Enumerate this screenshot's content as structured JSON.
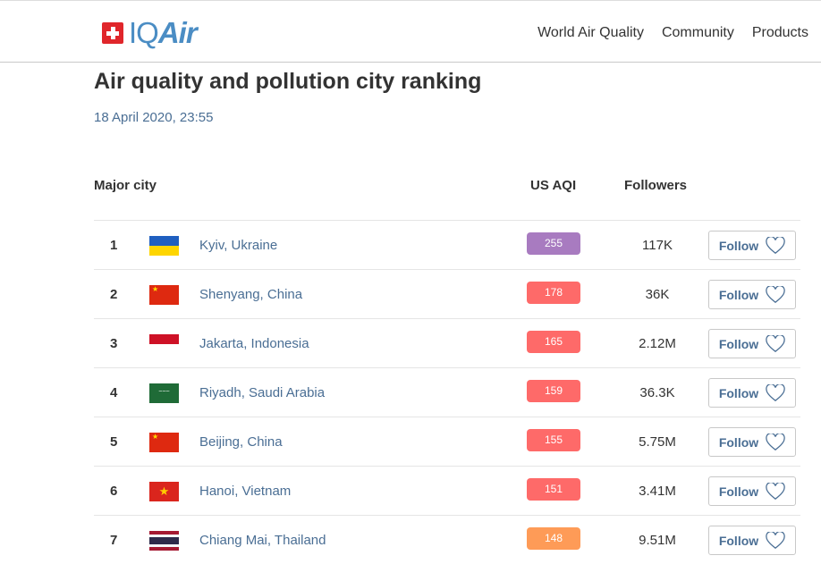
{
  "header": {
    "logo": "IQAir",
    "nav": [
      "World Air Quality",
      "Community",
      "Products"
    ]
  },
  "page": {
    "title": "Air quality and pollution city ranking",
    "date": "18 April 2020, 23:55"
  },
  "table": {
    "headers": {
      "city": "Major city",
      "aqi": "US AQI",
      "followers": "Followers"
    },
    "follow_label": "Follow",
    "rows": [
      {
        "rank": "1",
        "flag": "ukraine",
        "city": "Kyiv, Ukraine",
        "aqi": "255",
        "color": "#a87bc0",
        "followers": "117K"
      },
      {
        "rank": "2",
        "flag": "china",
        "city": "Shenyang, China",
        "aqi": "178",
        "color": "#fe6a69",
        "followers": "36K"
      },
      {
        "rank": "3",
        "flag": "indonesia",
        "city": "Jakarta, Indonesia",
        "aqi": "165",
        "color": "#fe6a69",
        "followers": "2.12M"
      },
      {
        "rank": "4",
        "flag": "saudi-arabia",
        "city": "Riyadh, Saudi Arabia",
        "aqi": "159",
        "color": "#fe6a69",
        "followers": "36.3K"
      },
      {
        "rank": "5",
        "flag": "china",
        "city": "Beijing, China",
        "aqi": "155",
        "color": "#fe6a69",
        "followers": "5.75M"
      },
      {
        "rank": "6",
        "flag": "vietnam",
        "city": "Hanoi, Vietnam",
        "aqi": "151",
        "color": "#fe6a69",
        "followers": "3.41M"
      },
      {
        "rank": "7",
        "flag": "thailand",
        "city": "Chiang Mai, Thailand",
        "aqi": "148",
        "color": "#fe9b57",
        "followers": "9.51M"
      }
    ]
  }
}
